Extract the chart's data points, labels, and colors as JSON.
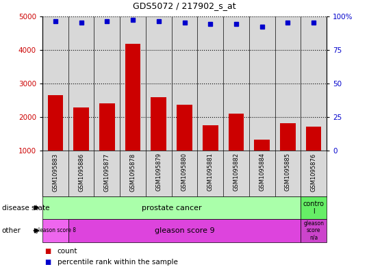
{
  "title": "GDS5072 / 217902_s_at",
  "samples": [
    "GSM1095883",
    "GSM1095886",
    "GSM1095877",
    "GSM1095878",
    "GSM1095879",
    "GSM1095880",
    "GSM1095881",
    "GSM1095882",
    "GSM1095884",
    "GSM1095885",
    "GSM1095876"
  ],
  "counts": [
    2650,
    2280,
    2400,
    4180,
    2580,
    2360,
    1760,
    2100,
    1330,
    1820,
    1720
  ],
  "percentile_ranks": [
    96,
    95,
    96,
    97,
    96,
    95,
    94,
    94,
    92,
    95,
    95
  ],
  "ylim_left": [
    1000,
    5000
  ],
  "ylim_right": [
    0,
    100
  ],
  "yticks_left": [
    1000,
    2000,
    3000,
    4000,
    5000
  ],
  "yticks_right": [
    0,
    25,
    50,
    75,
    100
  ],
  "bar_color": "#cc0000",
  "dot_color": "#0000cc",
  "bg_color": "#ffffff",
  "axis_bg_color": "#d8d8d8",
  "grid_color": "#000000",
  "prostate_color": "#aaffaa",
  "control_color": "#66ee66",
  "g8_color": "#ee66ee",
  "g9_color": "#dd44dd",
  "gna_color": "#cc44cc",
  "label_bg_color": "#d8d8d8",
  "row_label_disease": "disease state",
  "row_label_other": "other",
  "legend_count": "count",
  "legend_percentile": "percentile rank within the sample",
  "n_samples": 11,
  "prostate_span": 10,
  "g8_span": 1,
  "g9_span": 9
}
